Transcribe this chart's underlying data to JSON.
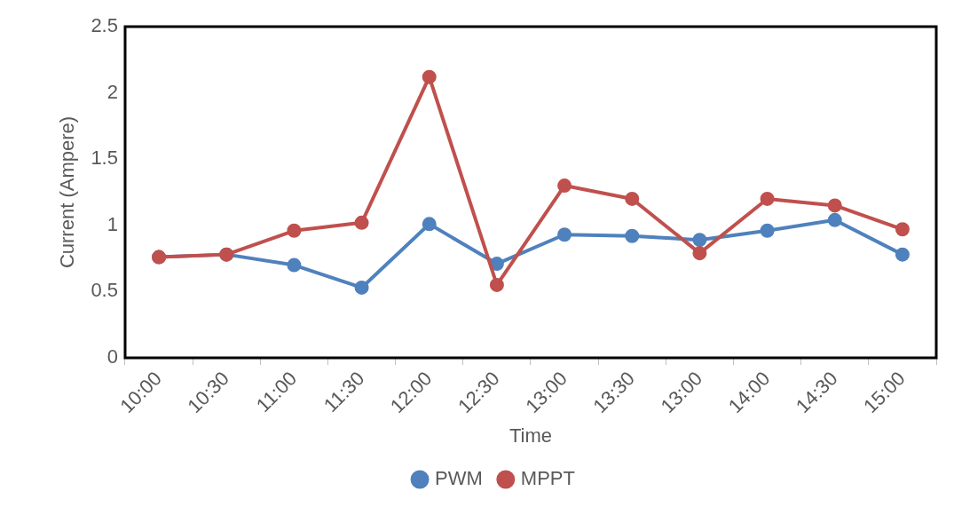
{
  "chart_data": {
    "type": "line",
    "xlabel": "Time",
    "ylabel": "Current (Ampere)",
    "categories": [
      "10:00",
      "10:30",
      "11:00",
      "11:30",
      "12:00",
      "12:30",
      "13:00",
      "13:30",
      "13:00",
      "14:00",
      "14:30",
      "15:00"
    ],
    "series": [
      {
        "name": "PWM",
        "color": "#4f81bd",
        "values": [
          0.76,
          0.78,
          0.7,
          0.53,
          1.01,
          0.71,
          0.93,
          0.92,
          0.89,
          0.96,
          1.04,
          0.78
        ]
      },
      {
        "name": "MPPT",
        "color": "#c0504d",
        "values": [
          0.76,
          0.78,
          0.96,
          1.02,
          2.12,
          0.55,
          1.3,
          1.2,
          0.79,
          1.2,
          1.15,
          0.97
        ]
      }
    ],
    "ylim": [
      0,
      2.5
    ],
    "yticks": [
      0,
      0.5,
      1,
      1.5,
      2,
      2.5
    ],
    "grid": false,
    "legend": "bottom",
    "marker": "circle",
    "line_style": "solid"
  }
}
